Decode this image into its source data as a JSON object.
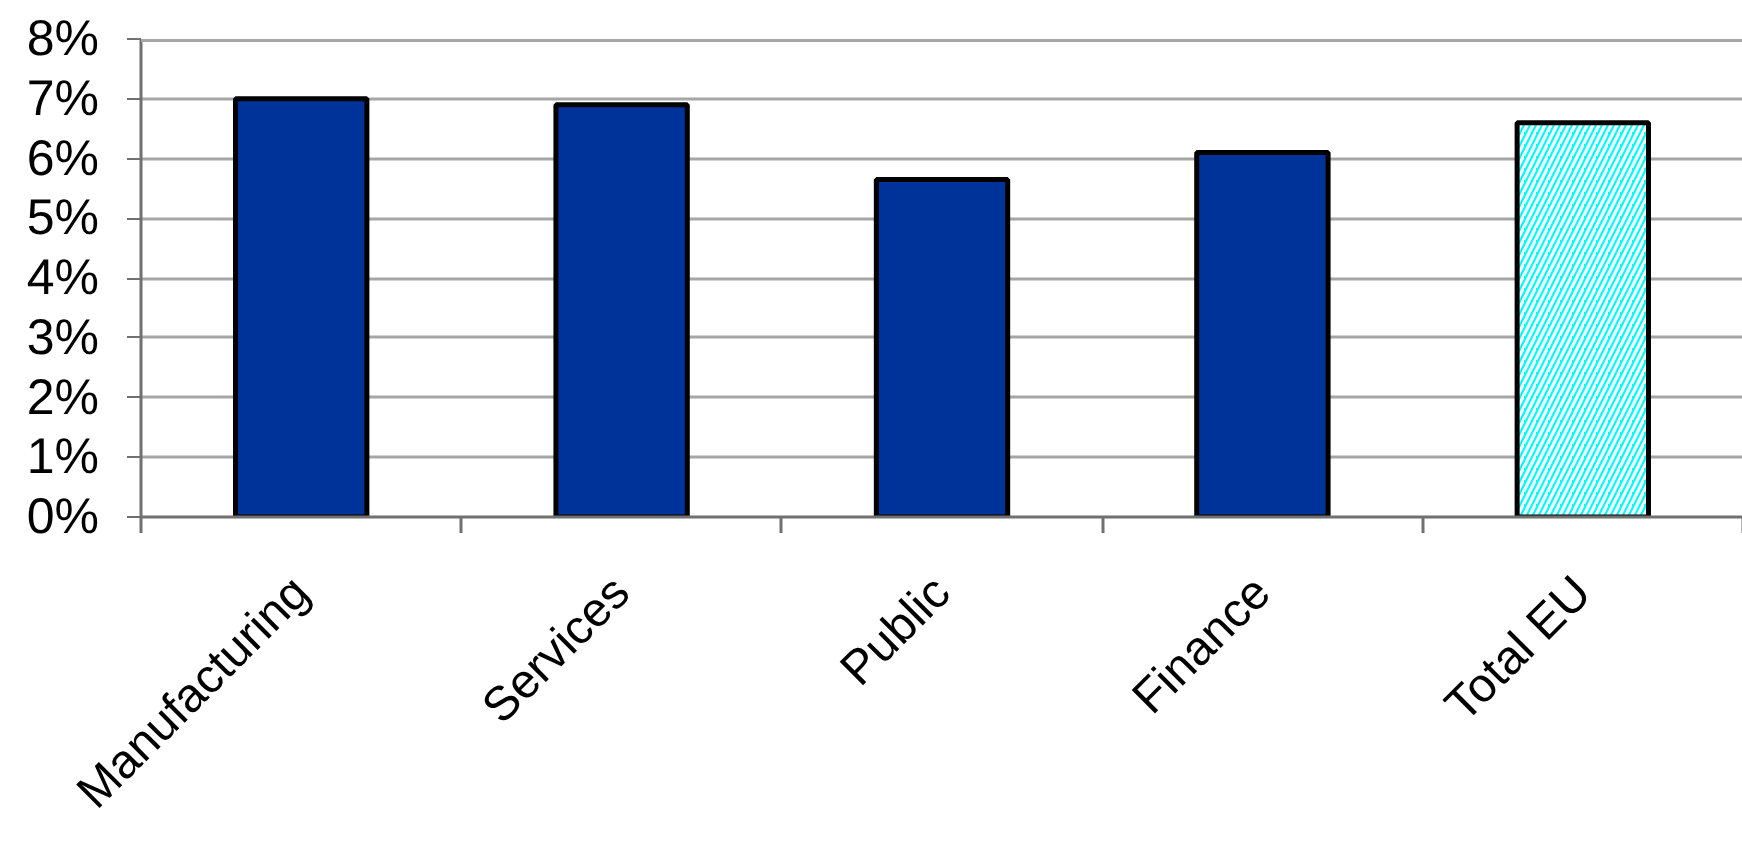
{
  "chart_data": {
    "type": "bar",
    "categories": [
      "Manufacturing",
      "Services",
      "Public",
      "Finance",
      "Total EU"
    ],
    "values": [
      7.0,
      6.9,
      5.65,
      6.1,
      6.6
    ],
    "colors": [
      "#003399",
      "#003399",
      "#003399",
      "#003399",
      "#00ffff"
    ],
    "ylim": [
      0,
      8
    ],
    "yticks": [
      {
        "value": 0,
        "label": "0%"
      },
      {
        "value": 1,
        "label": "1%"
      },
      {
        "value": 2,
        "label": "2%"
      },
      {
        "value": 3,
        "label": "3%"
      },
      {
        "value": 4,
        "label": "4%"
      },
      {
        "value": 5,
        "label": "5%"
      },
      {
        "value": 6,
        "label": "6%"
      },
      {
        "value": 7,
        "label": "7%"
      },
      {
        "value": 8,
        "label": "8%"
      }
    ],
    "grid": "y"
  }
}
